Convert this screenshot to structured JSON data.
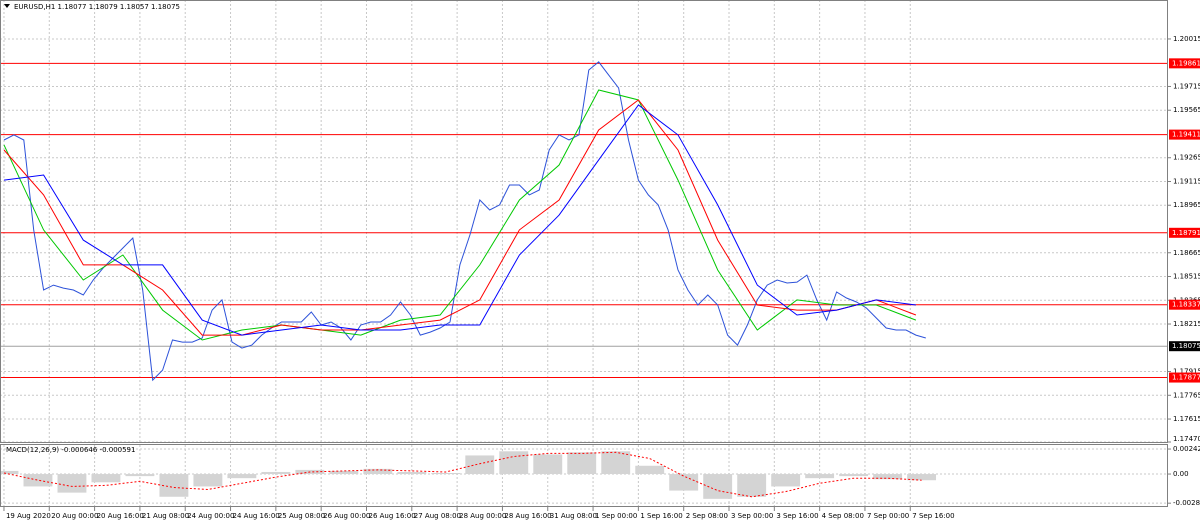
{
  "chart_data": [
    {
      "type": "line",
      "title": "EURUSD,H1  1.18077 1.18079 1.18057 1.18075",
      "xlim": [
        -1.4,
        411
      ],
      "ylim": [
        1.1747,
        1.20261
      ],
      "yticks": [
        1.20015,
        1.19715,
        1.19565,
        1.19265,
        1.19115,
        1.18965,
        1.18665,
        1.18515,
        1.18365,
        1.18215,
        1.17915,
        1.17765,
        1.17615,
        {
          "value": 1.1747,
          "label": "1.17470"
        }
      ],
      "grid": true,
      "levels": [
        1.19861,
        1.19411,
        1.18791,
        1.18337,
        1.17877
      ],
      "level_color": "#ff0000",
      "current": 1.18075,
      "series": [
        {
          "color": "#2d52d9",
          "x": [
            0,
            3.5,
            7,
            10.5,
            14,
            17.5,
            21,
            24.5,
            28,
            31.5,
            35,
            38.5,
            42,
            45.5,
            49,
            52.5,
            56,
            59.5,
            63,
            66.5,
            70,
            73.5,
            77,
            80.5,
            84,
            87.5,
            91,
            94.5,
            98,
            101.5,
            105,
            108.5,
            112,
            115.5,
            119,
            122.5,
            126,
            129.5,
            133,
            136.5,
            140,
            143.5,
            147,
            150.5,
            154,
            157.5,
            161,
            164.5,
            168,
            171.5,
            175,
            178.5,
            182,
            185.5,
            189,
            192.5,
            196,
            199.5,
            203,
            206.5,
            210,
            213.5,
            217,
            220.5,
            224,
            227.5,
            231,
            234.5,
            238,
            241.5,
            245,
            248.5,
            252,
            255.5,
            259,
            262.5,
            266,
            269.5,
            273,
            276.5,
            280,
            283.5,
            287,
            290.5,
            294,
            297.5,
            301,
            304.5,
            308,
            311.5,
            315,
            318.5,
            322,
            325.5
          ],
          "values": [
            1.19377,
            1.19409,
            1.19377,
            1.18809,
            1.1843,
            1.18461,
            1.18442,
            1.1843,
            1.18398,
            1.18493,
            1.18569,
            1.18632,
            1.18695,
            1.18758,
            1.1843,
            1.17861,
            1.17924,
            1.18114,
            1.18101,
            1.18101,
            1.18127,
            1.18303,
            1.18367,
            1.18101,
            1.18063,
            1.18082,
            1.18145,
            1.1819,
            1.18228,
            1.18228,
            1.18228,
            1.18291,
            1.18209,
            1.18228,
            1.1819,
            1.18114,
            1.18209,
            1.18228,
            1.18228,
            1.18272,
            1.18354,
            1.18272,
            1.18145,
            1.18164,
            1.1819,
            1.18228,
            1.18588,
            1.18777,
            1.18998,
            1.18935,
            1.18967,
            1.19093,
            1.19093,
            1.1903,
            1.19061,
            1.19314,
            1.19409,
            1.19377,
            1.19409,
            1.19819,
            1.1987,
            1.19788,
            1.19706,
            1.19377,
            1.19124,
            1.1903,
            1.18967,
            1.18809,
            1.18556,
            1.1843,
            1.18335,
            1.18398,
            1.18335,
            1.18145,
            1.18082,
            1.18209,
            1.18367,
            1.18461,
            1.18493,
            1.18474,
            1.1848,
            1.18524,
            1.18367,
            1.1824,
            1.18417,
            1.18379,
            1.18354,
            1.18316,
            1.18253,
            1.1819,
            1.18177,
            1.18177,
            1.18145,
            1.18127
          ]
        },
        {
          "color": "#00c800",
          "x": [
            0,
            14,
            28,
            42,
            56,
            70,
            84,
            98,
            112,
            126,
            140,
            154,
            168,
            182,
            196,
            210,
            224,
            238,
            252,
            266,
            280,
            294,
            308,
            322
          ],
          "values": [
            1.19346,
            1.18809,
            1.18493,
            1.18651,
            1.18303,
            1.18114,
            1.18177,
            1.18209,
            1.18177,
            1.18145,
            1.1824,
            1.18272,
            1.18588,
            1.18998,
            1.19219,
            1.19693,
            1.1963,
            1.19124,
            1.18556,
            1.18177,
            1.18367,
            1.18335,
            1.18335,
            1.1824
          ]
        },
        {
          "color": "#ff0000",
          "x": [
            0,
            14,
            28,
            42,
            56,
            70,
            84,
            98,
            112,
            126,
            140,
            154,
            168,
            182,
            196,
            210,
            224,
            238,
            252,
            266,
            280,
            294,
            308,
            322
          ],
          "values": [
            1.19314,
            1.1903,
            1.18588,
            1.18588,
            1.1843,
            1.18145,
            1.18145,
            1.18209,
            1.18177,
            1.18177,
            1.18209,
            1.1824,
            1.18367,
            1.18809,
            1.18998,
            1.1944,
            1.1963,
            1.19314,
            1.18745,
            1.18335,
            1.18303,
            1.18303,
            1.18367,
            1.18272
          ]
        },
        {
          "color": "#0000ff",
          "x": [
            0,
            14,
            28,
            42,
            56,
            70,
            84,
            98,
            112,
            126,
            140,
            154,
            168,
            182,
            196,
            210,
            224,
            238,
            252,
            266,
            280,
            294,
            308,
            322
          ],
          "values": [
            1.19124,
            1.19156,
            1.18745,
            1.18588,
            1.18588,
            1.1824,
            1.18145,
            1.18177,
            1.18209,
            1.18177,
            1.18177,
            1.18209,
            1.18209,
            1.18651,
            1.18903,
            1.19251,
            1.19598,
            1.19409,
            1.18967,
            1.18461,
            1.18272,
            1.18303,
            1.18367,
            1.18335
          ]
        }
      ]
    },
    {
      "type": "macd",
      "title": "MACD(12,26,9) -0.000646 -0.000591",
      "xlim": [
        -1.4,
        411
      ],
      "ylim": [
        -0.00319,
        0.00281
      ],
      "yticks": [
        0.00242,
        {
          "value": 0,
          "label": "0.00"
        },
        -0.00282
      ],
      "xticks": [
        {
          "value": 0,
          "label": "19 Aug 2020"
        },
        {
          "value": 16,
          "label": "20 Aug 00:00"
        },
        {
          "value": 32,
          "label": "20 Aug 16:00"
        },
        {
          "value": 48,
          "label": "21 Aug 08:00"
        },
        {
          "value": 64,
          "label": "24 Aug 00:00"
        },
        {
          "value": 80,
          "label": "24 Aug 16:00"
        },
        {
          "value": 96,
          "label": "25 Aug 08:00"
        },
        {
          "value": 112,
          "label": "26 Aug 00:00"
        },
        {
          "value": 128,
          "label": "26 Aug 16:00"
        },
        {
          "value": 144,
          "label": "27 Aug 08:00"
        },
        {
          "value": 160,
          "label": "28 Aug 00:00"
        },
        {
          "value": 176,
          "label": "28 Aug 16:00"
        },
        {
          "value": 192,
          "label": "31 Aug 08:00"
        },
        {
          "value": 208,
          "label": "1 Sep 00:00"
        },
        {
          "value": 224,
          "label": "1 Sep 16:00"
        },
        {
          "value": 240,
          "label": "2 Sep 08:00"
        },
        {
          "value": 256,
          "label": "3 Sep 00:00"
        },
        {
          "value": 272,
          "label": "3 Sep 16:00"
        },
        {
          "value": 288,
          "label": "4 Sep 08:00"
        },
        {
          "value": 304,
          "label": "7 Sep 00:00"
        },
        {
          "value": 320,
          "label": "7 Sep 16:00"
        }
      ],
      "series": [
        {
          "type": "bar",
          "color": "#d4d4d4",
          "x": [
            0,
            12,
            24,
            36,
            48,
            60,
            72,
            84,
            96,
            108,
            120,
            132,
            144,
            156,
            168,
            180,
            192,
            204,
            216,
            228,
            240,
            252,
            264,
            276,
            288,
            300,
            312,
            324
          ],
          "values": [
            0.0003,
            -0.0012,
            -0.0018,
            -0.0008,
            -0.0002,
            -0.0022,
            -0.0012,
            -0.0004,
            0.0002,
            0.0004,
            0.0003,
            0.0005,
            0.0002,
            0.0001,
            0.0018,
            0.0022,
            0.0019,
            0.0021,
            0.0022,
            0.0008,
            -0.0016,
            -0.0024,
            -0.0022,
            -0.0012,
            -0.0004,
            -0.0002,
            -0.0005,
            -0.0006
          ]
        },
        {
          "type": "line",
          "color": "#ff0000",
          "dashed": true,
          "x": [
            0,
            12,
            24,
            36,
            48,
            60,
            72,
            84,
            96,
            108,
            120,
            132,
            144,
            156,
            168,
            180,
            192,
            204,
            216,
            228,
            240,
            252,
            264,
            276,
            288,
            300,
            312,
            324
          ],
          "values": [
            0.0001,
            -0.0006,
            -0.0012,
            -0.0011,
            -0.0007,
            -0.0013,
            -0.0015,
            -0.0009,
            -0.0003,
            0.0002,
            0.0003,
            0.0004,
            0.0003,
            0.0002,
            0.001,
            0.0017,
            0.002,
            0.002,
            0.0021,
            0.0015,
            -0.0002,
            -0.0016,
            -0.0022,
            -0.0017,
            -0.0009,
            -0.0004,
            -0.0004,
            -0.0006
          ]
        }
      ]
    }
  ]
}
